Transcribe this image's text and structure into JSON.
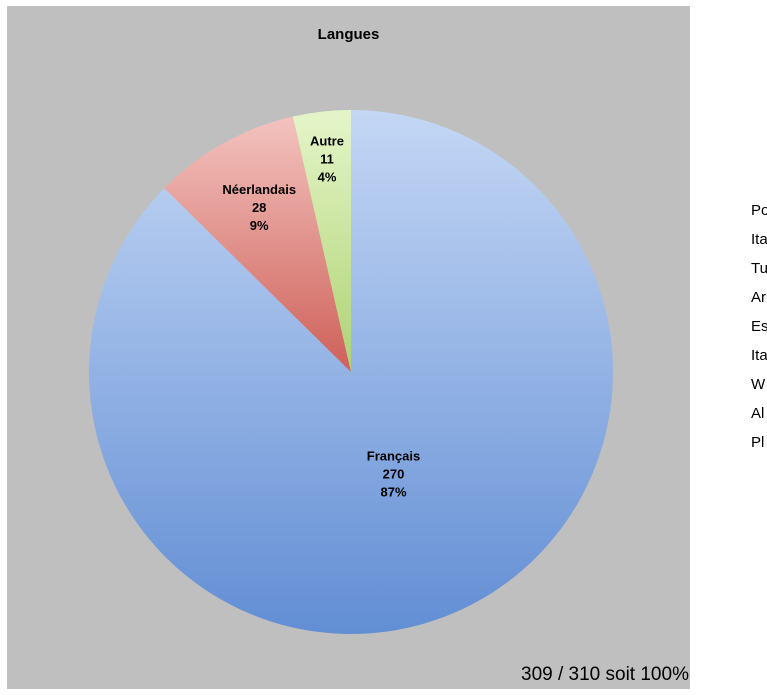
{
  "chart_data": {
    "type": "pie",
    "title": "Langues",
    "slices": [
      {
        "label": "Français",
        "value": 270,
        "percent": "87%",
        "color": "#6b9ae6"
      },
      {
        "label": "Néerlandais",
        "value": 28,
        "percent": "9%",
        "color": "#e06860"
      },
      {
        "label": "Autre",
        "value": 11,
        "percent": "4%",
        "color": "#bde57a"
      }
    ],
    "legend": "none",
    "background_color": "#bfbfbf"
  },
  "side_list": {
    "items": [
      "Po",
      "Ita",
      "Tu",
      "Ar",
      "Es",
      "Ita",
      "W",
      "Al",
      "Pl"
    ]
  },
  "footer": {
    "text": "309 / 310 soit 100%"
  }
}
